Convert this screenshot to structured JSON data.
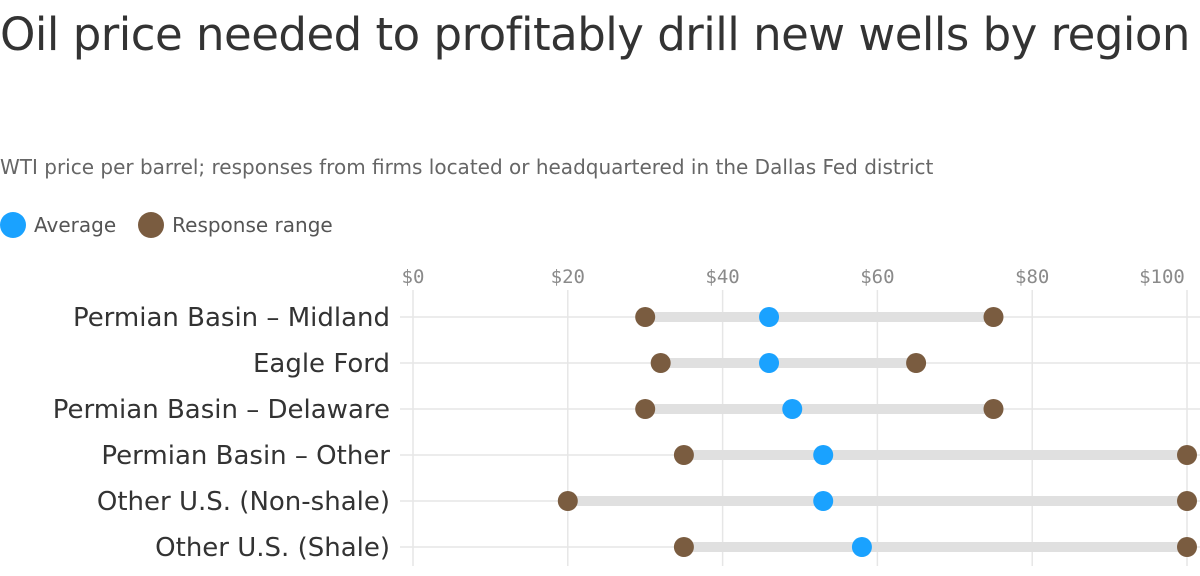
{
  "title": "Oil price needed to profitably drill new wells by region",
  "subtitle": "WTI price per barrel; responses from firms located or headquartered in the Dallas Fed district",
  "legend": [
    {
      "label": "Average",
      "color": "#1aa2ff"
    },
    {
      "label": "Response range",
      "color": "#7a5c40"
    }
  ],
  "chart_data": {
    "type": "dot-range",
    "categories": [
      "Permian Basin – Midland",
      "Eagle Ford",
      "Permian Basin – Delaware",
      "Permian Basin – Other",
      "Other U.S. (Non-shale)",
      "Other U.S. (Shale)"
    ],
    "series": [
      {
        "name": "Average",
        "values": [
          46,
          46,
          49,
          53,
          53,
          58
        ]
      },
      {
        "name": "Response range",
        "low": [
          30,
          32,
          30,
          35,
          20,
          35
        ],
        "high": [
          75,
          65,
          75,
          100,
          100,
          100
        ]
      }
    ],
    "x_ticks": [
      0,
      20,
      40,
      60,
      80,
      100
    ],
    "x_tick_labels": [
      "$0",
      "$20",
      "$40",
      "$60",
      "$80",
      "$100"
    ],
    "xlim": [
      0,
      100
    ],
    "grid": true,
    "legend_position": "top-left",
    "colors": {
      "average": "#1aa2ff",
      "range_end": "#7a5c40",
      "range_bar": "#e0e0e0",
      "grid": "#e6e6e6"
    }
  }
}
